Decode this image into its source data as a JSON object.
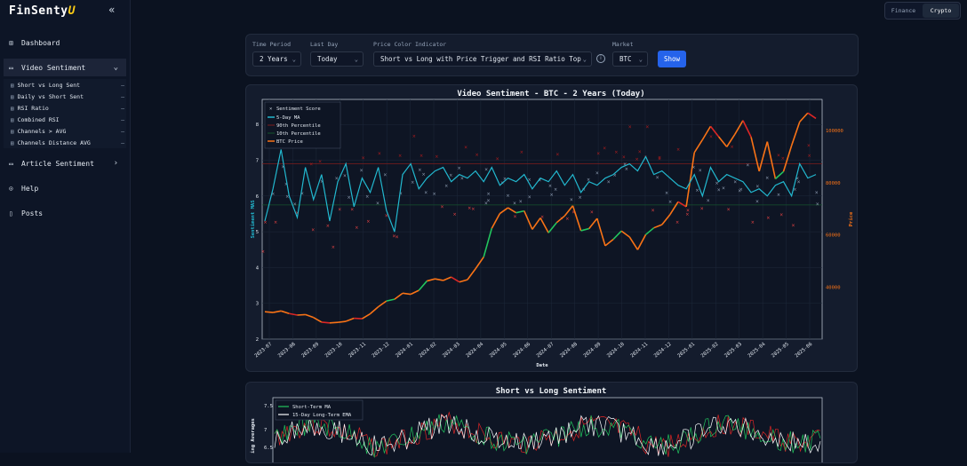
{
  "app": {
    "logo_main": "FinSenty",
    "logo_accent": "U"
  },
  "sidebar": {
    "items": [
      {
        "label": "Dashboard",
        "icon": "grid-icon"
      },
      {
        "label": "Video Sentiment",
        "icon": "video-icon"
      },
      {
        "label": "Article Sentiment",
        "icon": "document-icon"
      },
      {
        "label": "Help",
        "icon": "help-icon"
      },
      {
        "label": "Posts",
        "icon": "file-icon"
      }
    ],
    "sub_items": [
      "Short vs Long Sent",
      "Daily vs Short Sent",
      "RSI Ratio",
      "Combined RSI",
      "Channels > AVG",
      "Channels Distance AVG"
    ]
  },
  "toggle": {
    "finance": "Finance",
    "crypto": "Crypto",
    "active": "Crypto"
  },
  "filters": {
    "time_period": {
      "label": "Time Period",
      "value": "2 Years"
    },
    "last_day": {
      "label": "Last Day",
      "value": "Today"
    },
    "price_color": {
      "label": "Price Color Indicator",
      "value": "Short vs Long with Price Trigger and RSI Ratio Top"
    },
    "market": {
      "label": "Market",
      "value": "BTC"
    },
    "show_label": "Show"
  },
  "chart_data": [
    {
      "type": "line",
      "title": "Video Sentiment - BTC - 2 Years (Today)",
      "xlabel": "Date",
      "ylabel": "Sentiment MAS",
      "y2label": "Price",
      "x_ticks": [
        "2023-07",
        "2023-08",
        "2023-09",
        "2023-10",
        "2023-11",
        "2023-12",
        "2024-01",
        "2024-02",
        "2024-03",
        "2024-04",
        "2024-05",
        "2024-06",
        "2024-07",
        "2024-08",
        "2024-09",
        "2024-10",
        "2024-11",
        "2024-12",
        "2025-01",
        "2025-02",
        "2025-03",
        "2025-04",
        "2025-05",
        "2025-06"
      ],
      "y_ticks": [
        2,
        3,
        4,
        5,
        6,
        7,
        8
      ],
      "y2_ticks": [
        40000,
        60000,
        80000,
        100000
      ],
      "ylim": [
        2,
        8.7
      ],
      "y2lim": [
        20000,
        112000
      ],
      "legend": [
        "Sentiment Score",
        "5-Day MA",
        "90th Percentile",
        "10th Percentile",
        "BTC Price"
      ],
      "legend_position": "top-left",
      "percentile_90": 6.9,
      "percentile_10": 5.75,
      "series": [
        {
          "name": "5-Day MA",
          "color": "#22b8cf",
          "values": [
            5.3,
            6.2,
            7.3,
            6.0,
            5.4,
            6.8,
            5.9,
            6.6,
            5.3,
            6.4,
            6.9,
            5.7,
            6.5,
            6.1,
            6.8,
            5.6,
            5.0,
            6.6,
            6.9,
            6.2,
            6.5,
            6.7,
            6.8,
            6.4,
            6.6,
            6.5,
            6.7,
            6.4,
            6.8,
            6.3,
            6.5,
            6.4,
            6.6,
            6.2,
            6.5,
            6.4,
            6.7,
            6.3,
            6.6,
            6.1,
            6.4,
            6.3,
            6.5,
            6.6,
            6.8,
            6.9,
            6.7,
            7.1,
            6.6,
            6.7,
            6.5,
            6.3,
            6.2,
            6.6,
            6.0,
            6.8,
            6.4,
            6.6,
            6.5,
            6.4,
            6.1,
            6.2,
            6.0,
            6.3,
            6.4,
            6.0,
            6.9,
            6.5,
            6.6
          ]
        },
        {
          "name": "BTC Price",
          "color": "#f97316",
          "values": [
            30500,
            30200,
            30800,
            29800,
            29200,
            29400,
            28300,
            26500,
            26200,
            26400,
            26800,
            28000,
            27800,
            29700,
            32400,
            34600,
            35300,
            37600,
            37200,
            38700,
            42300,
            43100,
            42500,
            43800,
            41900,
            42800,
            47000,
            51500,
            62500,
            68200,
            70400,
            68500,
            69200,
            62100,
            66500,
            60800,
            64700,
            67300,
            71200,
            61600,
            62400,
            66300,
            55800,
            58300,
            61500,
            59200,
            54300,
            60100,
            62700,
            63900,
            67800,
            72700,
            70800,
            91600,
            96500,
            101700,
            97700,
            93800,
            98600,
            103900,
            97600,
            84400,
            95800,
            81500,
            84300,
            94300,
            103400,
            106800,
            104700
          ]
        }
      ]
    },
    {
      "type": "line",
      "title": "Short vs Long Sentiment",
      "ylabel": "ing Averages",
      "y_ticks": [
        6.5,
        7.0,
        7.5
      ],
      "legend": [
        "Short-Term MA",
        "15-Day Long-Term EMA"
      ],
      "legend_position": "top-left"
    }
  ]
}
